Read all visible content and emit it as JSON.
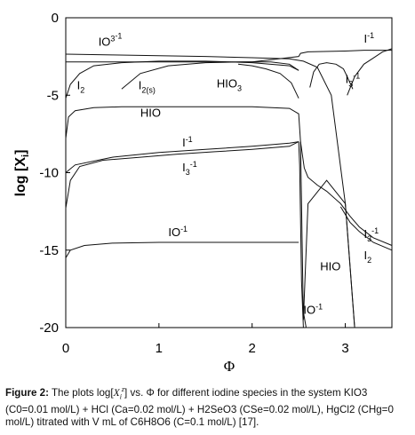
{
  "chart_data": {
    "type": "line",
    "xlabel": "Φ",
    "ylabel": "log [X",
    "ylabel_sub": "i",
    "ylabel_close": "]",
    "xlim": [
      0,
      3.5
    ],
    "ylim": [
      -20,
      0
    ],
    "xticks": [
      0,
      1,
      2,
      3
    ],
    "xtick_labels": [
      "0",
      "1",
      "2",
      "3"
    ],
    "yticks": [
      0,
      -5,
      -10,
      -15,
      -20
    ],
    "ytick_labels": [
      "0",
      "-5",
      "-10",
      "-15",
      "-20"
    ],
    "grid": false,
    "curve_labels": [
      {
        "text": "IO",
        "sup": "3",
        "sup2": "-1",
        "x": 0.35,
        "y": -1.8
      },
      {
        "text": "I",
        "sub": "2",
        "x": 0.12,
        "y": -4.6
      },
      {
        "text": "I",
        "sub": "2(s)",
        "x": 0.78,
        "y": -4.6
      },
      {
        "text": "HIO",
        "sub": "3",
        "x": 1.62,
        "y": -4.5
      },
      {
        "text": "I",
        "sup": "-1",
        "x": 3.2,
        "y": -1.6
      },
      {
        "text": "I",
        "sub": "3",
        "sup": "-1",
        "x": 3.0,
        "y": -4.2
      },
      {
        "text": "HIO",
        "x": 0.8,
        "y": -6.4
      },
      {
        "text": "I",
        "sup": "-1",
        "x": 1.25,
        "y": -8.3
      },
      {
        "text": "I",
        "sub": "3",
        "sup": "-1",
        "x": 1.25,
        "y": -9.9
      },
      {
        "text": "IO",
        "sup": "-1",
        "x": 1.1,
        "y": -14.1
      },
      {
        "text": "I",
        "sub": "3",
        "sup": "-1",
        "x": 3.2,
        "y": -14.2
      },
      {
        "text": "I",
        "sub": "2",
        "x": 3.2,
        "y": -15.6
      },
      {
        "text": "HIO",
        "x": 2.73,
        "y": -16.3
      },
      {
        "text": "IO",
        "sup": "-1",
        "x": 2.55,
        "y": -19.1
      }
    ],
    "series": [
      {
        "label_ref": "IO3-1",
        "x": [
          0,
          0.5,
          1.0,
          1.5,
          2.0,
          2.4,
          2.55,
          2.7,
          2.85,
          3.0,
          3.1
        ],
        "y": [
          -2.35,
          -2.4,
          -2.45,
          -2.5,
          -2.58,
          -2.65,
          -2.8,
          -3.2,
          -5.0,
          -12.0,
          -20.0
        ]
      },
      {
        "label_ref": "I-1 top",
        "x": [
          0,
          0.5,
          1.0,
          1.5,
          2.0,
          2.5,
          2.52,
          2.6,
          3.0,
          3.2,
          3.5
        ],
        "y": [
          -2.85,
          -2.85,
          -2.85,
          -2.85,
          -2.85,
          -2.5,
          -2.3,
          -2.2,
          -2.15,
          -2.1,
          -2.1
        ]
      },
      {
        "label_ref": "I2",
        "x": [
          0,
          0.05,
          0.15,
          0.3,
          0.6,
          1.0,
          1.5,
          2.0,
          2.4,
          2.5
        ],
        "y": [
          -5.2,
          -4.3,
          -3.6,
          -3.1,
          -2.9,
          -2.8,
          -2.8,
          -2.9,
          -3.1,
          -3.4
        ]
      },
      {
        "label_ref": "I2(s)",
        "x": [
          0.6,
          0.8,
          1.1,
          1.5,
          1.9,
          2.2,
          2.4,
          2.5
        ],
        "y": [
          -4.6,
          -3.6,
          -3.1,
          -2.9,
          -2.85,
          -2.85,
          -3.0,
          -3.4
        ]
      },
      {
        "label_ref": "HIO3",
        "x": [
          1.85,
          2.0,
          2.15,
          2.3,
          2.42,
          2.5
        ],
        "y": [
          -3.0,
          -3.1,
          -3.3,
          -3.6,
          -4.2,
          -5.2
        ]
      },
      {
        "label_ref": "I3-1 top",
        "x": [
          2.62,
          2.66,
          2.72,
          2.8,
          2.9,
          2.98,
          3.02,
          3.08
        ],
        "y": [
          -4.5,
          -3.5,
          -3.0,
          -2.9,
          -3.0,
          -3.3,
          -3.8,
          -4.6
        ]
      },
      {
        "label_ref": "I3-1 right rise",
        "x": [
          3.02,
          3.1,
          3.2,
          3.3,
          3.4,
          3.5
        ],
        "y": [
          -5.0,
          -3.8,
          -3.0,
          -2.6,
          -2.2,
          -2.0
        ]
      },
      {
        "label_ref": "HIO",
        "x": [
          0,
          0.03,
          0.1,
          0.3,
          0.6,
          1.0,
          1.5,
          2.0,
          2.4,
          2.5,
          2.52,
          2.55,
          2.6,
          2.8,
          3.0,
          3.1
        ],
        "y": [
          -7.8,
          -6.4,
          -6.0,
          -5.8,
          -5.75,
          -5.75,
          -5.75,
          -5.75,
          -5.85,
          -6.2,
          -8.0,
          -19.5,
          -12.0,
          -10.5,
          -12.0,
          -20.0
        ]
      },
      {
        "label_ref": "I-1 mid",
        "x": [
          0,
          0.1,
          0.5,
          1.0,
          1.5,
          2.0,
          2.4,
          2.5
        ],
        "y": [
          -10.0,
          -9.5,
          -9.0,
          -8.7,
          -8.5,
          -8.3,
          -8.1,
          -8.0
        ]
      },
      {
        "label_ref": "I3-1 mid",
        "x": [
          0,
          0.05,
          0.15,
          0.4,
          0.8,
          1.2,
          1.6,
          2.0,
          2.4,
          2.5
        ],
        "y": [
          -12.3,
          -10.5,
          -9.6,
          -9.2,
          -9.0,
          -8.8,
          -8.65,
          -8.5,
          -8.3,
          -8.0
        ]
      },
      {
        "label_ref": "IO-1 left",
        "x": [
          0,
          0.05,
          0.2,
          0.5,
          1.0,
          1.5,
          2.0,
          2.45,
          2.5
        ],
        "y": [
          -15.5,
          -15.0,
          -14.7,
          -14.55,
          -14.5,
          -14.5,
          -14.5,
          -14.5,
          -14.5
        ]
      },
      {
        "label_ref": "vertical at Φ≈2.5",
        "x": [
          2.5,
          2.51,
          2.52,
          2.53,
          2.55
        ],
        "y": [
          -8.0,
          -9.5,
          -13.0,
          -17.0,
          -20.0
        ]
      },
      {
        "label_ref": "right descending I3-1 / I2",
        "x": [
          2.52,
          2.56,
          2.6,
          2.7,
          2.8,
          2.95,
          3.05,
          3.15,
          3.3,
          3.5
        ],
        "y": [
          -8.0,
          -9.7,
          -10.3,
          -10.8,
          -11.2,
          -12.0,
          -12.8,
          -13.5,
          -14.2,
          -14.7
        ]
      },
      {
        "label_ref": "I2 right",
        "x": [
          2.95,
          3.05,
          3.15,
          3.3,
          3.5
        ],
        "y": [
          -12.2,
          -13.2,
          -13.8,
          -14.5,
          -15.0
        ]
      },
      {
        "label_ref": "IO-1 right",
        "x": [
          2.55,
          2.58,
          2.7,
          2.85,
          2.95
        ],
        "y": [
          -19.0,
          -20.0,
          -20.0,
          -20.0,
          -20.0
        ]
      }
    ]
  },
  "caption": {
    "figure_label": "Figure 2:",
    "text_before": " The plots log[",
    "symbol": "X",
    "symbol_sub": "i",
    "symbol_sup": "z",
    "text_after": "] vs. Φ for different iodine species in the system KIO3 (C0=0.01 mol/L) + HCl (Ca=0.02 mol/L) + H2SeO3 (CSe=0.02 mol/L), HgCl2 (CHg=0 mol/L) titrated with V mL of C6H8O6 (C=0.1 mol/L) [17]."
  }
}
